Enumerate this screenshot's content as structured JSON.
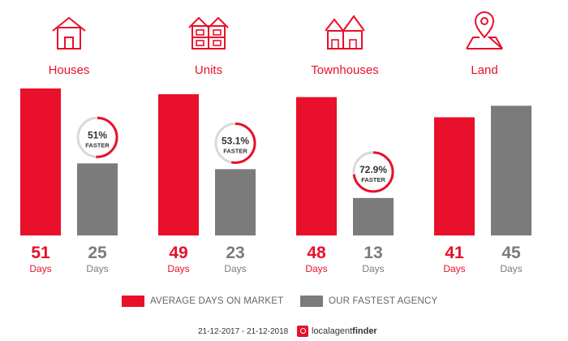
{
  "colors": {
    "primary": "#e8102a",
    "secondary": "#7b7b7b",
    "ring_track": "#d9d9d9"
  },
  "chart_data": {
    "type": "bar",
    "categories": [
      "Houses",
      "Units",
      "Townhouses",
      "Land"
    ],
    "icons": [
      "house-icon",
      "units-icon",
      "townhouses-icon",
      "land-pin-icon"
    ],
    "series": [
      {
        "name": "AVERAGE DAYS ON MARKET",
        "values": [
          51,
          49,
          48,
          41
        ]
      },
      {
        "name": "OUR FASTEST AGENCY",
        "values": [
          25,
          23,
          13,
          45
        ]
      }
    ],
    "value_unit": "Days",
    "faster": [
      {
        "category": "Houses",
        "percent": 51,
        "label": "51%",
        "text": "FASTER"
      },
      {
        "category": "Units",
        "percent": 53.1,
        "label": "53.1%",
        "text": "FASTER"
      },
      {
        "category": "Townhouses",
        "percent": 72.9,
        "label": "72.9%",
        "text": "FASTER"
      },
      null
    ],
    "ylim": [
      0,
      55
    ],
    "legend_position": "bottom"
  },
  "legend": [
    {
      "label": "AVERAGE DAYS ON MARKET"
    },
    {
      "label": "OUR FASTEST AGENCY"
    }
  ],
  "footer": {
    "date_range": "21-12-2017 - 21-12-2018",
    "brand_light": "localagent",
    "brand_bold": "finder"
  }
}
